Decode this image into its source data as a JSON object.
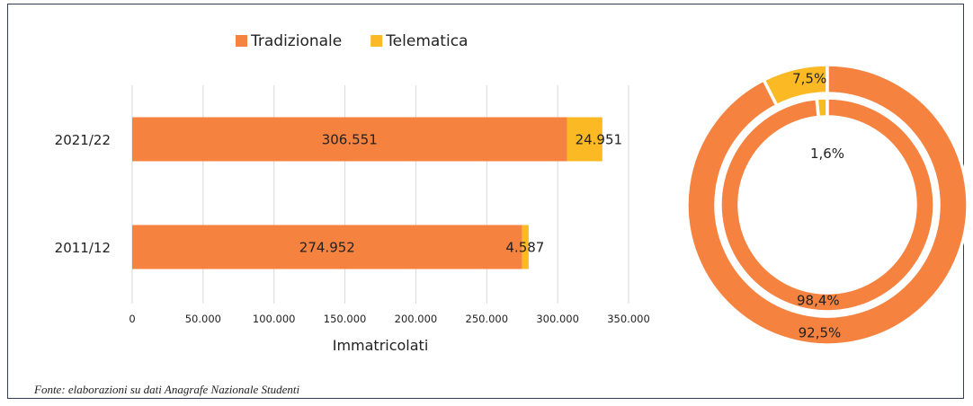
{
  "colors": {
    "tradizionale": "#F5823F",
    "telematica": "#FBBA23",
    "grid": "#d9d9d9",
    "text": "#222222"
  },
  "source_note": "Fonte: elaborazioni su dati Anagrafe Nazionale Studenti",
  "chart_data": [
    {
      "type": "bar",
      "orientation": "horizontal",
      "stacked": true,
      "categories": [
        "2021/22",
        "2011/12"
      ],
      "series": [
        {
          "name": "Tradizionale",
          "values": [
            306551,
            274952
          ],
          "labels": [
            "306.551",
            "274.952"
          ]
        },
        {
          "name": "Telematica",
          "values": [
            24951,
            4587
          ],
          "labels": [
            "24.951",
            "4.587"
          ]
        }
      ],
      "xlabel": "Immatricolati",
      "xlim": [
        0,
        350000
      ],
      "xticks": [
        "0",
        "50.000",
        "100.000",
        "150.000",
        "200.000",
        "250.000",
        "300.000",
        "350.000"
      ],
      "grid": true,
      "legend": "top"
    },
    {
      "type": "pie",
      "style": "donut",
      "rings": [
        {
          "ring": "outer",
          "slices": [
            {
              "series": "Tradizionale",
              "value": 92.5,
              "label": "92,5%"
            },
            {
              "series": "Telematica",
              "value": 7.5,
              "label": "7,5%"
            }
          ]
        },
        {
          "ring": "inner",
          "slices": [
            {
              "series": "Tradizionale",
              "value": 98.4,
              "label": "98,4%"
            },
            {
              "series": "Telematica",
              "value": 1.6,
              "label": "1,6%"
            }
          ]
        }
      ]
    }
  ]
}
